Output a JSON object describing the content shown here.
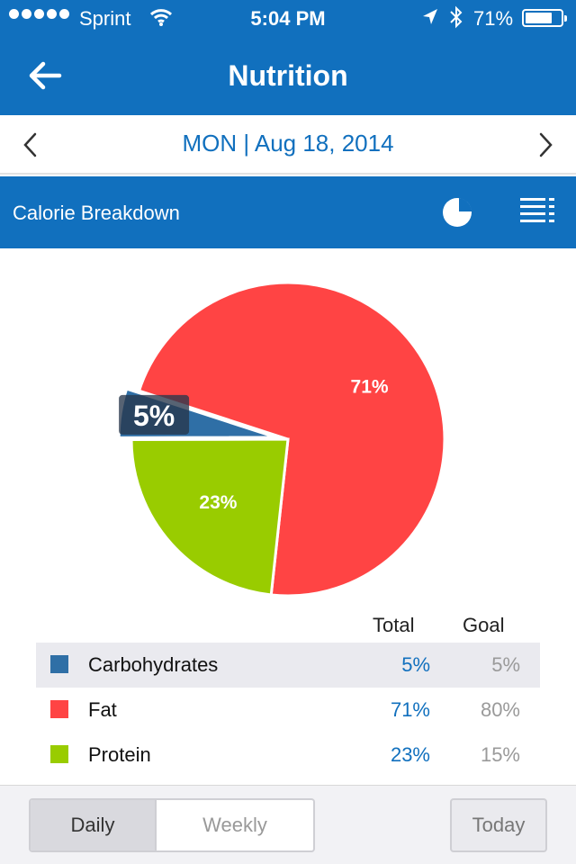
{
  "status": {
    "carrier": "Sprint",
    "time": "5:04 PM",
    "battery": "71%",
    "battery_level": 0.71,
    "icons": [
      "signal-dots-icon",
      "wifi-icon",
      "location-arrow-icon",
      "bluetooth-icon",
      "battery-icon"
    ]
  },
  "nav": {
    "title": "Nutrition",
    "back_icon": "back-arrow-icon"
  },
  "date": {
    "label": "MON | Aug 18, 2014",
    "prev_icon": "chevron-left-icon",
    "next_icon": "chevron-right-icon"
  },
  "section": {
    "title": "Calorie Breakdown",
    "icons": [
      "pie-chart-icon",
      "list-view-icon"
    ]
  },
  "chart_data": {
    "type": "pie",
    "labels": [
      "Carbohydrates",
      "Fat",
      "Protein"
    ],
    "values": [
      5,
      71,
      23
    ],
    "data_labels": [
      "5%",
      "71%",
      "23%"
    ],
    "colors": [
      "#2f6fa6",
      "#ff4444",
      "#99cc00"
    ],
    "highlighted": "Carbohydrates"
  },
  "table": {
    "headers": {
      "total": "Total",
      "goal": "Goal"
    },
    "rows": [
      {
        "name": "Carbohydrates",
        "total": "5%",
        "goal": "5%",
        "color": "#2f6fa6"
      },
      {
        "name": "Fat",
        "total": "71%",
        "goal": "80%",
        "color": "#ff4444"
      },
      {
        "name": "Protein",
        "total": "23%",
        "goal": "15%",
        "color": "#99cc00"
      }
    ]
  },
  "bottom": {
    "daily": "Daily",
    "weekly": "Weekly",
    "today": "Today",
    "selected": "Daily"
  }
}
